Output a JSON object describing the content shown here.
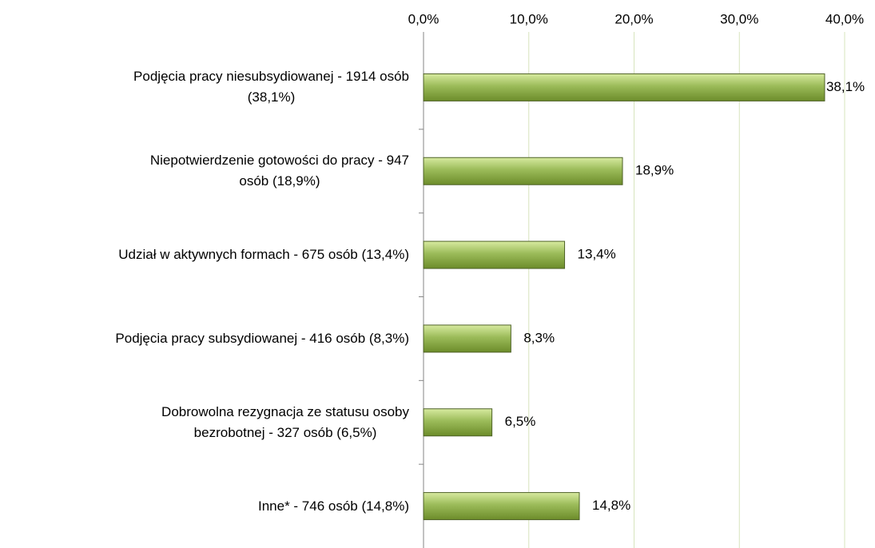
{
  "chart_data": {
    "type": "bar",
    "orientation": "horizontal",
    "categories": [
      "Podjęcia pracy niesubsydiowanej - 1914 osób\n(38,1%)",
      "Niepotwierdzenie gotowości do pracy - 947\nosób (18,9%)",
      "Udział w aktywnych formach - 675 osób (13,4%)",
      "Podjęcia pracy subsydiowanej - 416 osób (8,3%)",
      "Dobrowolna rezygnacja ze statusu osoby\nbezrobotnej - 327 osób (6,5%)",
      "Inne* - 746 osób (14,8%)"
    ],
    "values": [
      38.1,
      18.9,
      13.4,
      8.3,
      6.5,
      14.8
    ],
    "value_labels": [
      "38,1%",
      "18,9%",
      "13,4%",
      "8,3%",
      "6,5%",
      "14,8%"
    ],
    "color": "#9bbb59",
    "xlim": [
      0,
      40
    ],
    "xticks": [
      {
        "value": 0,
        "label": "0,0%"
      },
      {
        "value": 10,
        "label": "10,0%"
      },
      {
        "value": 20,
        "label": "20,0%"
      },
      {
        "value": 30,
        "label": "30,0%"
      },
      {
        "value": 40,
        "label": "40,0%"
      }
    ],
    "grid": true
  }
}
